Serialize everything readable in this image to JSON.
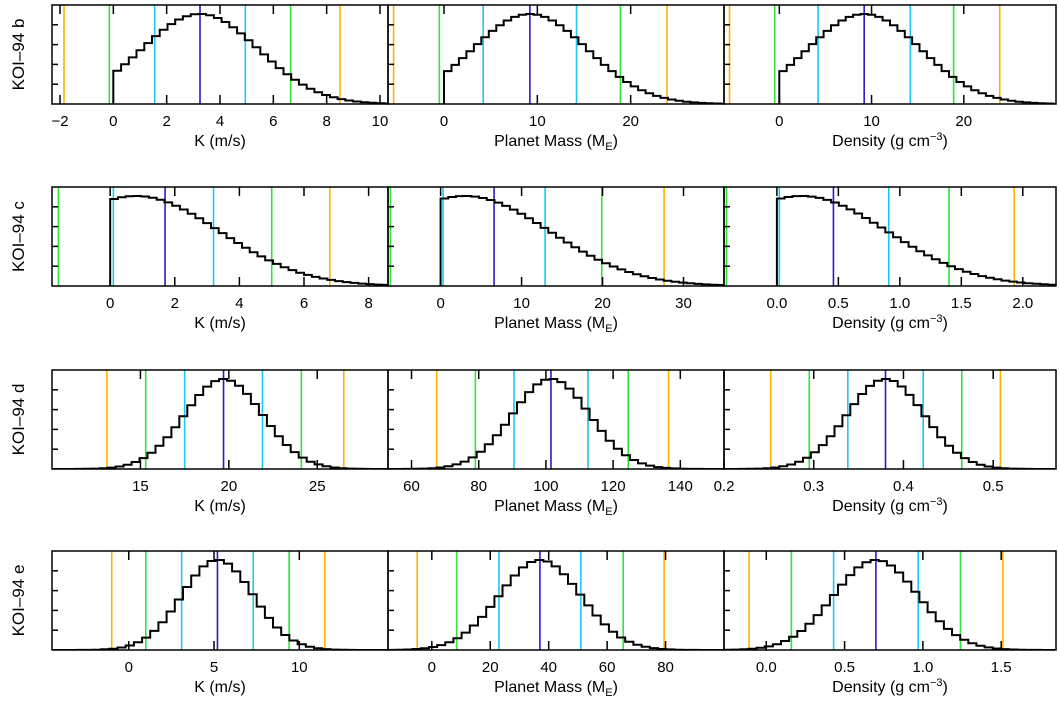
{
  "colors": {
    "histogram": "#000000",
    "median": "#3a12c8",
    "sigma1": "#1ec8f0",
    "sigma2": "#2ee63a",
    "sigma3": "#ffb300"
  },
  "chart_data": {
    "type": "histogram-grid",
    "rows": [
      {
        "label": "KOI–94 b",
        "panels": [
          {
            "xlabel": "K (m/s)",
            "unit_sub": "",
            "unit_sup": "",
            "xlim": [
              -2.3,
              10.3
            ],
            "ticks": [
              -2,
              0,
              2,
              4,
              6,
              8,
              10
            ],
            "tick_labels": [
              "−2",
              "0",
              "2",
              "4",
              "6",
              "8",
              "10"
            ],
            "lines": [
              3.25,
              1.55,
              4.95,
              -0.15,
              6.65,
              -1.85,
              8.5
            ],
            "peak": 3.25,
            "width": 2.2,
            "trunc": 0,
            "bin": 0.29
          },
          {
            "xlabel": "Planet Mass (M",
            "unit_sub": "E",
            "unit_sup": "",
            "xlim": [
              -6,
              30
            ],
            "ticks": [
              0,
              10,
              20
            ],
            "tick_labels": [
              "0",
              "10",
              "20"
            ],
            "lines": [
              9.2,
              4.2,
              14.2,
              -0.5,
              18.9,
              -5.4,
              23.9
            ],
            "peak": 9.2,
            "width": 6.2,
            "trunc": 0,
            "bin": 0.8
          },
          {
            "xlabel": "Density (g cm",
            "unit_sub": "",
            "unit_sup": "−3",
            "xlim": [
              -6,
              30
            ],
            "ticks": [
              0,
              10,
              20
            ],
            "tick_labels": [
              "0",
              "10",
              "20"
            ],
            "lines": [
              9.2,
              4.2,
              14.2,
              -0.5,
              18.9,
              -5.4,
              23.9
            ],
            "peak": 9.2,
            "width": 6.2,
            "trunc": 0,
            "bin": 0.8
          }
        ]
      },
      {
        "label": "KOI–94 c",
        "panels": [
          {
            "xlabel": "K (m/s)",
            "unit_sub": "",
            "unit_sup": "",
            "xlim": [
              -1.8,
              8.6
            ],
            "ticks": [
              0,
              2,
              4,
              6,
              8
            ],
            "tick_labels": [
              "0",
              "2",
              "4",
              "6",
              "8"
            ],
            "lines": [
              1.7,
              0.1,
              3.2,
              -1.6,
              5.0,
              6.8
            ],
            "peak": 0.8,
            "width": 2.6,
            "trunc": 0,
            "bin": 0.24
          },
          {
            "xlabel": "Planet Mass (M",
            "unit_sub": "E",
            "unit_sup": "",
            "xlim": [
              -6.5,
              35
            ],
            "ticks": [
              0,
              10,
              20,
              30
            ],
            "tick_labels": [
              "0",
              "10",
              "20",
              "30"
            ],
            "lines": [
              6.6,
              0.3,
              12.9,
              -6.2,
              19.9,
              27.6
            ],
            "peak": 3.0,
            "width": 10.5,
            "trunc": 0,
            "bin": 0.95
          },
          {
            "xlabel": "Density (g cm",
            "unit_sub": "",
            "unit_sup": "−3",
            "xlim": [
              -0.43,
              2.27
            ],
            "ticks": [
              0,
              0.5,
              1,
              1.5,
              2
            ],
            "tick_labels": [
              "0.0",
              "0.5",
              "1.0",
              "1.5",
              "2.0"
            ],
            "lines": [
              0.46,
              0.02,
              0.91,
              -0.41,
              1.4,
              1.93
            ],
            "peak": 0.2,
            "width": 0.7,
            "trunc": 0,
            "bin": 0.063
          }
        ]
      },
      {
        "label": "KOI–94 d",
        "panels": [
          {
            "xlabel": "K (m/s)",
            "unit_sub": "",
            "unit_sup": "",
            "xlim": [
              10,
              29
            ],
            "ticks": [
              15,
              20,
              25
            ],
            "tick_labels": [
              "15",
              "20",
              "25"
            ],
            "lines": [
              19.7,
              17.5,
              21.9,
              15.3,
              24.1,
              13.1,
              26.5
            ],
            "peak": 19.7,
            "width": 2.2,
            "trunc": null,
            "bin": 0.45
          },
          {
            "xlabel": "Planet Mass (M",
            "unit_sub": "E",
            "unit_sup": "",
            "xlim": [
              53,
              153
            ],
            "ticks": [
              60,
              80,
              100,
              120,
              140
            ],
            "tick_labels": [
              "60",
              "80",
              "100",
              "120",
              "140"
            ],
            "lines": [
              101.5,
              90.5,
              112.5,
              79,
              124.5,
              67.5,
              136.5
            ],
            "peak": 101.5,
            "width": 11.5,
            "trunc": null,
            "bin": 2.4
          },
          {
            "xlabel": "Density (g cm",
            "unit_sub": "",
            "unit_sup": "−3",
            "xlim": [
              0.2,
              0.57
            ],
            "ticks": [
              0.2,
              0.3,
              0.4,
              0.5
            ],
            "tick_labels": [
              "0.2",
              "0.3",
              "0.4",
              "0.5"
            ],
            "lines": [
              0.38,
              0.338,
              0.422,
              0.295,
              0.465,
              0.252,
              0.508
            ],
            "peak": 0.38,
            "width": 0.043,
            "trunc": null,
            "bin": 0.0088
          }
        ]
      },
      {
        "label": "KOI–94 e",
        "panels": [
          {
            "xlabel": "K (m/s)",
            "unit_sub": "",
            "unit_sup": "",
            "xlim": [
              -4.5,
              15.2
            ],
            "ticks": [
              0,
              5,
              10
            ],
            "tick_labels": [
              "0",
              "5",
              "10"
            ],
            "lines": [
              5.2,
              3.1,
              7.3,
              1.0,
              9.4,
              -1.0,
              11.5
            ],
            "peak": 5.2,
            "width": 2.1,
            "trunc": null,
            "bin": 0.48
          },
          {
            "xlabel": "Planet Mass (M",
            "unit_sub": "E",
            "unit_sup": "",
            "xlim": [
              -15,
              100
            ],
            "ticks": [
              0,
              20,
              40,
              60,
              80
            ],
            "tick_labels": [
              "0",
              "20",
              "40",
              "60",
              "80"
            ],
            "lines": [
              37,
              23,
              51,
              8.5,
              65.5,
              -5,
              79.5
            ],
            "peak": 37,
            "width": 14,
            "trunc": null,
            "bin": 2.8
          },
          {
            "xlabel": "Density (g cm",
            "unit_sub": "",
            "unit_sup": "−3",
            "xlim": [
              -0.27,
              1.85
            ],
            "ticks": [
              0,
              0.5,
              1,
              1.5
            ],
            "tick_labels": [
              "0.0",
              "0.5",
              "1.0",
              "1.5"
            ],
            "lines": [
              0.7,
              0.43,
              0.97,
              0.16,
              1.24,
              -0.11,
              1.51
            ],
            "peak": 0.7,
            "width": 0.27,
            "trunc": null,
            "bin": 0.052
          }
        ]
      }
    ]
  }
}
